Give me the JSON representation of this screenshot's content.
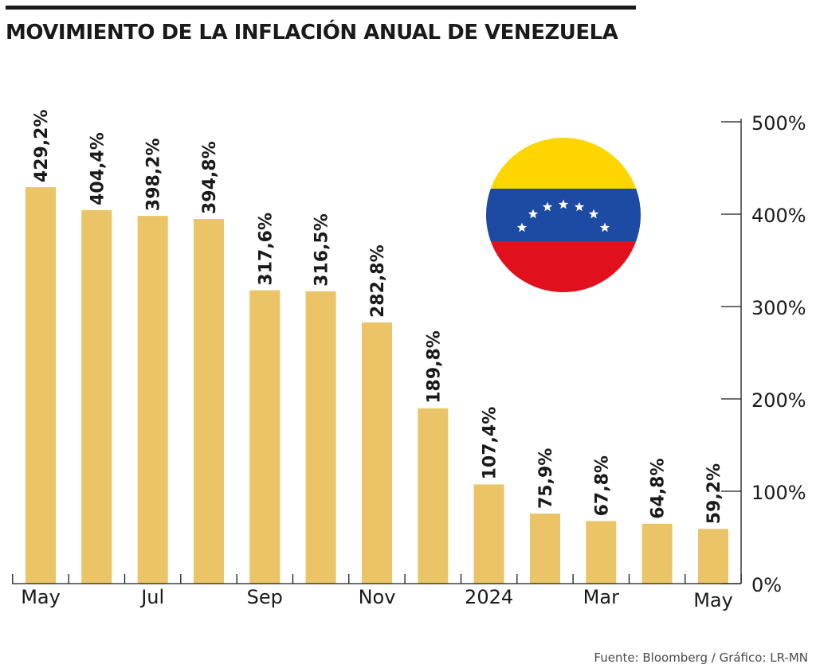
{
  "header": {
    "title": "MOVIMIENTO DE LA INFLACIÓN ANUAL DE VENEZUELA"
  },
  "footer": {
    "source": "Fuente: Bloomberg / Gráfico: LR-MN"
  },
  "colors": {
    "bar": "#eac466",
    "axis": "#1a1a1a",
    "flag_yellow": "#ffd500",
    "flag_blue": "#1d4aa3",
    "flag_red": "#e0101c",
    "flag_star": "#ffffff"
  },
  "flag": {
    "icon": "venezuela-flag-icon"
  },
  "chart_data": {
    "type": "bar",
    "title": "MOVIMIENTO DE LA INFLACIÓN ANUAL DE VENEZUELA",
    "xlabel": "",
    "ylabel": "",
    "categories": [
      "May",
      "",
      "Jul",
      "",
      "Sep",
      "",
      "Nov",
      "",
      "2024",
      "",
      "Mar",
      "",
      "May"
    ],
    "values": [
      429.2,
      404.4,
      398.2,
      394.8,
      317.6,
      316.5,
      282.8,
      189.8,
      107.4,
      75.9,
      67.8,
      64.8,
      59.2
    ],
    "value_labels": [
      "429,2%",
      "404,4%",
      "398,2%",
      "394,8%",
      "317,6%",
      "316,5%",
      "282,8%",
      "189,8%",
      "107,4%",
      "75,9%",
      "67,8%",
      "64,8%",
      "59,2%"
    ],
    "x_tick_labels": [
      "May",
      "Jul",
      "Sep",
      "Nov",
      "2024",
      "Mar",
      "May"
    ],
    "y_tick_labels": [
      "0%",
      "100%",
      "200%",
      "300%",
      "400%",
      "500%"
    ],
    "y_ticks": [
      0,
      100,
      200,
      300,
      400,
      500
    ],
    "ylim": [
      0,
      500
    ],
    "grid": false,
    "legend": "none",
    "y_axis_position": "right"
  }
}
